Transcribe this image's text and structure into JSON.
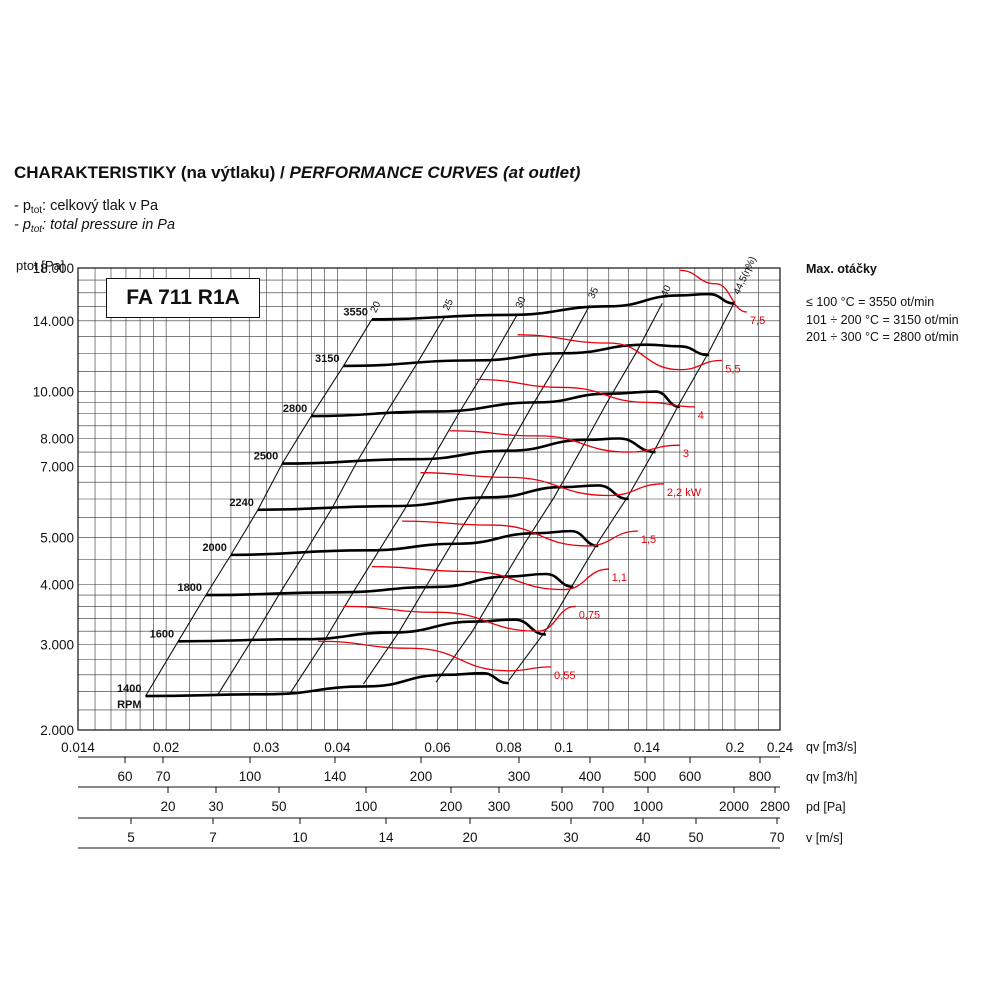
{
  "header": {
    "title_normal": "CHARAKTERISTIKY (na výtlaku) / ",
    "title_italic": "PERFORMANCE CURVES (at outlet)",
    "legend1_prefix": "- p",
    "legend1_sub": "tot",
    "legend1_text": ": celkový tlak v Pa",
    "legend2_prefix": "- p",
    "legend2_sub": "tot",
    "legend2_text": ": total pressure in Pa"
  },
  "model": "FA 711 R1A",
  "sidebar": {
    "title": "Max. otáčky",
    "lines": [
      "≤ 100 °C = 3550 ot/min",
      "101 ÷ 200 °C = 3150 ot/min",
      "201 ÷ 300 °C = 2800 ot/min"
    ]
  },
  "colors": {
    "curve": "#000000",
    "power": "#e8000b",
    "grid": "#222222"
  },
  "chart_data": {
    "type": "line",
    "y_axis": {
      "label": "ptot [Pa]",
      "scale": "log",
      "range": [
        2000,
        18000
      ],
      "ticks": [
        "2.000",
        "3.000",
        "4.000",
        "5.000",
        "7.000",
        "8.000",
        "10.000",
        "14.000",
        "18.000"
      ]
    },
    "x_axis": {
      "label": "qv [m3/s]",
      "scale": "log",
      "range": [
        0.014,
        0.24
      ],
      "ticks": [
        "0.014",
        "0.02",
        "0.03",
        "0.04",
        "0.06",
        "0.08",
        "0.1",
        "0.14",
        "0.2",
        "0.24"
      ]
    },
    "secondary_axes": [
      {
        "label": "qv [m3/h]",
        "ticks": [
          "60",
          "70",
          "100",
          "140",
          "200",
          "300",
          "400",
          "500",
          "600",
          "800"
        ]
      },
      {
        "label": "pd [Pa]",
        "ticks": [
          "20",
          "30",
          "50",
          "100",
          "200",
          "300",
          "500",
          "700",
          "1000",
          "2000",
          "2800"
        ]
      },
      {
        "label": "v [m/s]",
        "ticks": [
          "5",
          "7",
          "10",
          "14",
          "20",
          "30",
          "40",
          "50",
          "70"
        ]
      }
    ],
    "speed_curves": [
      {
        "rpm_label": "3550",
        "points": [
          [
            0.046,
            14100
          ],
          [
            0.08,
            14400
          ],
          [
            0.12,
            15000
          ],
          [
            0.16,
            15800
          ],
          [
            0.18,
            15900
          ],
          [
            0.2,
            15200
          ]
        ]
      },
      {
        "rpm_label": "3150",
        "points": [
          [
            0.041,
            11300
          ],
          [
            0.07,
            11600
          ],
          [
            0.1,
            12000
          ],
          [
            0.14,
            12500
          ],
          [
            0.16,
            12400
          ],
          [
            0.18,
            11900
          ]
        ]
      },
      {
        "rpm_label": "2800",
        "points": [
          [
            0.036,
            8900
          ],
          [
            0.06,
            9100
          ],
          [
            0.09,
            9500
          ],
          [
            0.12,
            9900
          ],
          [
            0.145,
            10000
          ],
          [
            0.16,
            9300
          ]
        ]
      },
      {
        "rpm_label": "2500",
        "points": [
          [
            0.032,
            7100
          ],
          [
            0.055,
            7250
          ],
          [
            0.08,
            7550
          ],
          [
            0.11,
            7950
          ],
          [
            0.125,
            8000
          ],
          [
            0.145,
            7500
          ]
        ]
      },
      {
        "rpm_label": "2240",
        "points": [
          [
            0.029,
            5700
          ],
          [
            0.05,
            5800
          ],
          [
            0.075,
            6050
          ],
          [
            0.1,
            6350
          ],
          [
            0.115,
            6400
          ],
          [
            0.13,
            6000
          ]
        ]
      },
      {
        "rpm_label": "2000",
        "points": [
          [
            0.026,
            4600
          ],
          [
            0.045,
            4700
          ],
          [
            0.065,
            4850
          ],
          [
            0.09,
            5100
          ],
          [
            0.103,
            5150
          ],
          [
            0.115,
            4800
          ]
        ]
      },
      {
        "rpm_label": "1800",
        "points": [
          [
            0.0235,
            3800
          ],
          [
            0.04,
            3850
          ],
          [
            0.06,
            3950
          ],
          [
            0.08,
            4150
          ],
          [
            0.093,
            4200
          ],
          [
            0.104,
            3950
          ]
        ]
      },
      {
        "rpm_label": "1600",
        "points": [
          [
            0.021,
            3050
          ],
          [
            0.035,
            3080
          ],
          [
            0.05,
            3180
          ],
          [
            0.07,
            3350
          ],
          [
            0.082,
            3380
          ],
          [
            0.093,
            3150
          ]
        ]
      },
      {
        "rpm_label": "1400",
        "points": [
          [
            0.0184,
            2350
          ],
          [
            0.03,
            2370
          ],
          [
            0.045,
            2460
          ],
          [
            0.062,
            2600
          ],
          [
            0.072,
            2620
          ],
          [
            0.08,
            2500
          ]
        ]
      }
    ],
    "rpm_unit": "RPM",
    "efficiency_labels": [
      "20",
      "25",
      "30",
      "35",
      "40",
      "44,5(η%)"
    ],
    "power_curves": [
      {
        "label": "7,5",
        "points": [
          [
            0.16,
            17800
          ],
          [
            0.185,
            16700
          ],
          [
            0.21,
            14600
          ]
        ]
      },
      {
        "label": "5,5",
        "points": [
          [
            0.083,
            13100
          ],
          [
            0.12,
            12600
          ],
          [
            0.16,
            11100
          ],
          [
            0.19,
            11600
          ]
        ]
      },
      {
        "label": "4",
        "points": [
          [
            0.07,
            10600
          ],
          [
            0.1,
            10200
          ],
          [
            0.14,
            9500
          ],
          [
            0.17,
            9300
          ]
        ]
      },
      {
        "label": "3",
        "points": [
          [
            0.063,
            8300
          ],
          [
            0.09,
            8100
          ],
          [
            0.13,
            7500
          ],
          [
            0.16,
            7750
          ]
        ]
      },
      {
        "label": "2,2 kW",
        "points": [
          [
            0.056,
            6800
          ],
          [
            0.08,
            6650
          ],
          [
            0.12,
            6100
          ],
          [
            0.15,
            6450
          ]
        ]
      },
      {
        "label": "1,5",
        "points": [
          [
            0.052,
            5400
          ],
          [
            0.075,
            5300
          ],
          [
            0.11,
            4800
          ],
          [
            0.135,
            5150
          ]
        ]
      },
      {
        "label": "1,1",
        "points": [
          [
            0.046,
            4350
          ],
          [
            0.068,
            4250
          ],
          [
            0.1,
            3900
          ],
          [
            0.12,
            4300
          ]
        ]
      },
      {
        "label": "0,75",
        "points": [
          [
            0.041,
            3600
          ],
          [
            0.06,
            3500
          ],
          [
            0.09,
            3200
          ],
          [
            0.105,
            3600
          ]
        ]
      },
      {
        "label": "0,55",
        "points": [
          [
            0.037,
            3050
          ],
          [
            0.054,
            2950
          ],
          [
            0.08,
            2650
          ],
          [
            0.095,
            2700
          ]
        ]
      }
    ]
  }
}
